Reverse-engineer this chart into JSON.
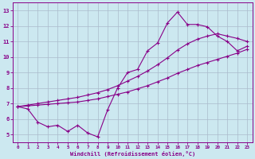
{
  "bg_color": "#cce8f0",
  "grid_color": "#aabbcc",
  "line_color": "#880088",
  "xlabel": "Windchill (Refroidissement éolien,°C)",
  "xlabel_color": "#880088",
  "xlim": [
    -0.5,
    23.5
  ],
  "ylim": [
    4.5,
    13.5
  ],
  "yticks": [
    5,
    6,
    7,
    8,
    9,
    10,
    11,
    12,
    13
  ],
  "xticks": [
    0,
    1,
    2,
    3,
    4,
    5,
    6,
    7,
    8,
    9,
    10,
    11,
    12,
    13,
    14,
    15,
    16,
    17,
    18,
    19,
    20,
    21,
    22,
    23
  ],
  "line1_x": [
    0,
    1,
    2,
    3,
    4,
    5,
    6,
    7,
    8,
    9,
    10,
    11,
    12,
    13,
    14,
    15,
    16,
    17,
    18,
    19,
    20,
    21,
    22,
    23
  ],
  "line1_y": [
    6.8,
    6.65,
    5.8,
    5.5,
    5.6,
    5.2,
    5.6,
    5.1,
    4.85,
    6.6,
    8.0,
    9.0,
    9.2,
    10.4,
    10.9,
    12.2,
    12.9,
    12.1,
    12.1,
    11.95,
    11.35,
    11.0,
    10.4,
    10.7
  ],
  "line2_x": [
    0,
    1,
    2,
    3,
    4,
    5,
    6,
    7,
    8,
    9,
    10,
    11,
    12,
    13,
    14,
    15,
    16,
    17,
    18,
    19,
    20,
    21,
    22,
    23
  ],
  "line2_y": [
    6.8,
    6.9,
    7.0,
    7.1,
    7.2,
    7.3,
    7.4,
    7.55,
    7.7,
    7.9,
    8.15,
    8.45,
    8.75,
    9.1,
    9.5,
    9.95,
    10.45,
    10.85,
    11.15,
    11.35,
    11.5,
    11.35,
    11.2,
    11.0
  ],
  "line3_x": [
    0,
    1,
    2,
    3,
    4,
    5,
    6,
    7,
    8,
    9,
    10,
    11,
    12,
    13,
    14,
    15,
    16,
    17,
    18,
    19,
    20,
    21,
    22,
    23
  ],
  "line3_y": [
    6.8,
    6.85,
    6.9,
    6.95,
    7.0,
    7.05,
    7.1,
    7.2,
    7.3,
    7.45,
    7.6,
    7.75,
    7.95,
    8.15,
    8.4,
    8.65,
    8.95,
    9.2,
    9.45,
    9.65,
    9.85,
    10.05,
    10.25,
    10.5
  ]
}
